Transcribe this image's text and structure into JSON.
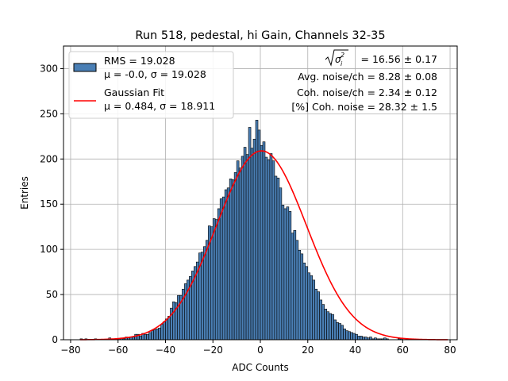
{
  "chart_data": {
    "type": "bar",
    "title": "Run 518, pedestal, hi Gain, Channels 32-35",
    "xlabel": "ADC Counts",
    "ylabel": "Entries",
    "xlim": [
      -83,
      83
    ],
    "ylim": [
      0,
      325
    ],
    "xticks": [
      -80,
      -60,
      -40,
      -20,
      0,
      20,
      40,
      60,
      80
    ],
    "yticks": [
      0,
      50,
      100,
      150,
      200,
      250,
      300
    ],
    "grid": true,
    "legend_placement": "top-left",
    "bin_width": 1,
    "bin_start": -76,
    "histogram_values": [
      1,
      0,
      1,
      0,
      0,
      0,
      1,
      0,
      0,
      0,
      0,
      0,
      2,
      1,
      1,
      1,
      1,
      2,
      1,
      3,
      2,
      3,
      3,
      6,
      6,
      4,
      7,
      6,
      6,
      8,
      10,
      11,
      12,
      13,
      17,
      20,
      23,
      26,
      35,
      42,
      41,
      49,
      49,
      56,
      62,
      66,
      70,
      76,
      81,
      86,
      96,
      97,
      103,
      110,
      126,
      125,
      134,
      133,
      145,
      156,
      158,
      166,
      168,
      178,
      177,
      185,
      198,
      190,
      203,
      213,
      205,
      235,
      212,
      222,
      243,
      232,
      215,
      219,
      202,
      199,
      206,
      198,
      181,
      179,
      168,
      149,
      145,
      147,
      142,
      118,
      121,
      110,
      99,
      95,
      85,
      81,
      74,
      71,
      66,
      56,
      53,
      44,
      39,
      34,
      31,
      29,
      28,
      22,
      19,
      18,
      16,
      12,
      10,
      9,
      8,
      7,
      6,
      4,
      4,
      3,
      3,
      2,
      3,
      1,
      2,
      1,
      1,
      1,
      2,
      1,
      0,
      0,
      0,
      0,
      1,
      1
    ],
    "fit": {
      "mu": 0.484,
      "sigma": 18.911,
      "amplitude": 209
    },
    "series": [
      {
        "name": "RMS = 19.028",
        "subname": "μ = -0.0, σ = 19.028",
        "color": "#4a7fb5"
      },
      {
        "name": "Gaussian Fit",
        "subname": "μ = 0.484, σ = 18.911",
        "color": "#ff0000"
      }
    ],
    "annotations": {
      "line1_value": " = 16.56 ± 0.17",
      "line2": "Avg. noise/ch = 8.28 ± 0.08",
      "line3": "Coh. noise/ch = 2.34 ± 0.12",
      "line4": "[%] Coh. noise = 28.32 ± 1.5"
    }
  }
}
